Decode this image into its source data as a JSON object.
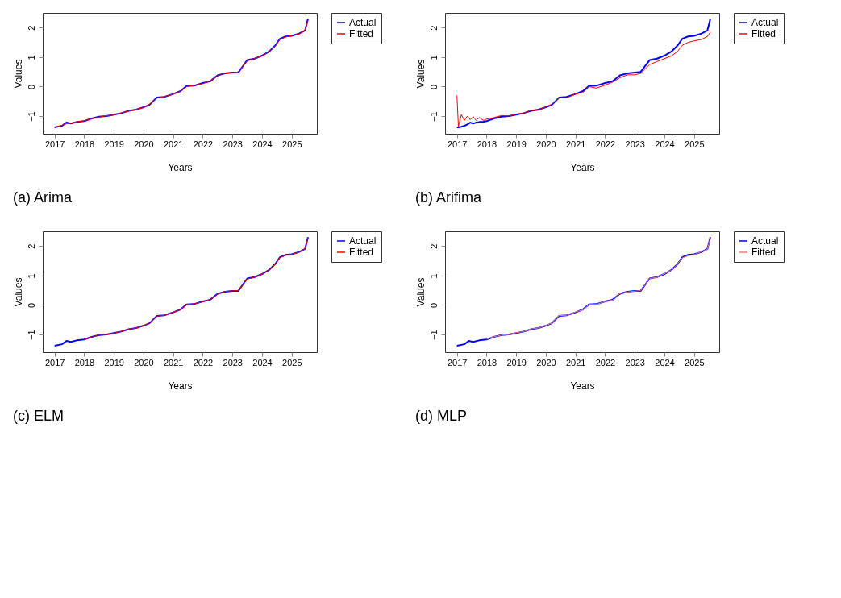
{
  "chart_data": [
    {
      "type": "line",
      "title": "(a) Arima",
      "xlabel": "Years",
      "ylabel": "Values",
      "xlim": [
        2016.6,
        2025.85
      ],
      "ylim": [
        -1.6,
        2.5
      ],
      "xticks": [
        2017,
        2018,
        2019,
        2020,
        2021,
        2022,
        2023,
        2024,
        2025
      ],
      "yticks": [
        -1,
        0,
        1,
        2
      ],
      "legend": "top right",
      "grid": false,
      "x": [
        2017.0,
        2017.25,
        2017.4,
        2017.55,
        2017.75,
        2018.0,
        2018.25,
        2018.5,
        2018.75,
        2019.0,
        2019.25,
        2019.5,
        2019.75,
        2020.0,
        2020.2,
        2020.45,
        2020.7,
        2021.0,
        2021.25,
        2021.45,
        2021.7,
        2022.0,
        2022.25,
        2022.5,
        2022.75,
        2023.0,
        2023.2,
        2023.5,
        2023.75,
        2024.0,
        2024.25,
        2024.45,
        2024.6,
        2024.8,
        2025.0,
        2025.25,
        2025.45,
        2025.55
      ],
      "series": [
        {
          "name": "Actual",
          "color": "#0000ff",
          "values": [
            -1.38,
            -1.33,
            -1.22,
            -1.25,
            -1.2,
            -1.17,
            -1.08,
            -1.02,
            -1.0,
            -0.95,
            -0.9,
            -0.82,
            -0.78,
            -0.7,
            -0.62,
            -0.37,
            -0.35,
            -0.25,
            -0.15,
            0.02,
            0.03,
            0.12,
            0.18,
            0.38,
            0.45,
            0.48,
            0.48,
            0.9,
            0.95,
            1.05,
            1.2,
            1.4,
            1.62,
            1.7,
            1.72,
            1.8,
            1.9,
            2.3
          ]
        },
        {
          "name": "Fitted",
          "color": "#ff0000",
          "values": [
            -1.38,
            -1.31,
            -1.26,
            -1.24,
            -1.19,
            -1.16,
            -1.09,
            -1.03,
            -0.99,
            -0.96,
            -0.89,
            -0.83,
            -0.77,
            -0.71,
            -0.6,
            -0.39,
            -0.34,
            -0.26,
            -0.14,
            0.0,
            0.04,
            0.1,
            0.2,
            0.36,
            0.46,
            0.47,
            0.5,
            0.87,
            0.96,
            1.04,
            1.22,
            1.38,
            1.6,
            1.68,
            1.73,
            1.78,
            1.92,
            2.25
          ]
        }
      ]
    },
    {
      "type": "line",
      "title": "(b) Arifima",
      "xlabel": "Years",
      "ylabel": "Values",
      "xlim": [
        2016.6,
        2025.85
      ],
      "ylim": [
        -1.6,
        2.5
      ],
      "xticks": [
        2017,
        2018,
        2019,
        2020,
        2021,
        2022,
        2023,
        2024,
        2025
      ],
      "yticks": [
        -1,
        0,
        1,
        2
      ],
      "legend": "top right",
      "grid": false,
      "x": [
        2017.0,
        2017.05,
        2017.15,
        2017.25,
        2017.35,
        2017.45,
        2017.55,
        2017.65,
        2017.75,
        2017.9,
        2018.0,
        2018.25,
        2018.5,
        2018.75,
        2019.0,
        2019.25,
        2019.5,
        2019.75,
        2020.0,
        2020.2,
        2020.45,
        2020.7,
        2021.0,
        2021.25,
        2021.45,
        2021.7,
        2022.0,
        2022.25,
        2022.5,
        2022.75,
        2023.0,
        2023.2,
        2023.5,
        2023.75,
        2024.0,
        2024.25,
        2024.45,
        2024.6,
        2024.8,
        2025.0,
        2025.25,
        2025.45,
        2025.55
      ],
      "series": [
        {
          "name": "Actual",
          "color": "#0000ff",
          "values": [
            -1.38,
            -1.38,
            -1.36,
            -1.33,
            -1.28,
            -1.22,
            -1.25,
            -1.22,
            -1.2,
            -1.19,
            -1.17,
            -1.08,
            -1.02,
            -1.0,
            -0.95,
            -0.9,
            -0.82,
            -0.78,
            -0.7,
            -0.62,
            -0.37,
            -0.35,
            -0.25,
            -0.15,
            0.02,
            0.03,
            0.12,
            0.18,
            0.38,
            0.45,
            0.48,
            0.5,
            0.9,
            0.95,
            1.05,
            1.2,
            1.4,
            1.62,
            1.7,
            1.72,
            1.8,
            1.9,
            2.3
          ]
        },
        {
          "name": "Fitted",
          "color": "#ff0000",
          "values": [
            -0.3,
            -1.35,
            -0.95,
            -1.15,
            -1.0,
            -1.12,
            -1.02,
            -1.15,
            -1.05,
            -1.15,
            -1.1,
            -1.05,
            -0.98,
            -1.0,
            -0.93,
            -0.9,
            -0.8,
            -0.8,
            -0.68,
            -0.6,
            -0.38,
            -0.38,
            -0.25,
            -0.2,
            0.0,
            -0.05,
            0.05,
            0.15,
            0.3,
            0.4,
            0.4,
            0.45,
            0.75,
            0.85,
            0.95,
            1.05,
            1.2,
            1.4,
            1.5,
            1.55,
            1.6,
            1.7,
            1.85
          ]
        }
      ]
    },
    {
      "type": "line",
      "title": "(c) ELM",
      "xlabel": "Years",
      "ylabel": "Values",
      "xlim": [
        2016.6,
        2025.85
      ],
      "ylim": [
        -1.6,
        2.5
      ],
      "xticks": [
        2017,
        2018,
        2019,
        2020,
        2021,
        2022,
        2023,
        2024,
        2025
      ],
      "yticks": [
        -1,
        0,
        1,
        2
      ],
      "legend": "top right",
      "grid": false,
      "x": [
        2017.0,
        2017.25,
        2017.4,
        2017.55,
        2017.75,
        2018.0,
        2018.25,
        2018.5,
        2018.75,
        2019.0,
        2019.25,
        2019.5,
        2019.75,
        2020.0,
        2020.2,
        2020.45,
        2020.7,
        2021.0,
        2021.25,
        2021.45,
        2021.7,
        2022.0,
        2022.25,
        2022.5,
        2022.75,
        2023.0,
        2023.2,
        2023.5,
        2023.75,
        2024.0,
        2024.25,
        2024.45,
        2024.6,
        2024.8,
        2025.0,
        2025.25,
        2025.45,
        2025.55
      ],
      "series": [
        {
          "name": "Actual",
          "color": "#0000ff",
          "values": [
            -1.38,
            -1.33,
            -1.22,
            -1.25,
            -1.2,
            -1.17,
            -1.08,
            -1.02,
            -1.0,
            -0.95,
            -0.9,
            -0.82,
            -0.78,
            -0.7,
            -0.62,
            -0.37,
            -0.35,
            -0.25,
            -0.15,
            0.02,
            0.03,
            0.12,
            0.18,
            0.38,
            0.45,
            0.48,
            0.48,
            0.9,
            0.95,
            1.05,
            1.2,
            1.4,
            1.62,
            1.7,
            1.72,
            1.8,
            1.9,
            2.3
          ]
        },
        {
          "name": "Fitted",
          "color": "#ff0000",
          "values": [
            null,
            null,
            null,
            null,
            null,
            -1.17,
            -1.09,
            -1.01,
            -1.0,
            -0.96,
            -0.89,
            -0.82,
            -0.78,
            -0.7,
            -0.61,
            -0.38,
            -0.35,
            -0.25,
            -0.15,
            0.01,
            0.04,
            0.11,
            0.19,
            0.37,
            0.46,
            0.48,
            0.49,
            0.88,
            0.95,
            1.05,
            1.21,
            1.39,
            1.61,
            1.69,
            1.72,
            1.79,
            1.91,
            2.28
          ]
        }
      ]
    },
    {
      "type": "line",
      "title": "(d) MLP",
      "xlabel": "Years",
      "ylabel": "Values",
      "xlim": [
        2016.6,
        2025.85
      ],
      "ylim": [
        -1.6,
        2.5
      ],
      "xticks": [
        2017,
        2018,
        2019,
        2020,
        2021,
        2022,
        2023,
        2024,
        2025
      ],
      "yticks": [
        -1,
        0,
        1,
        2
      ],
      "legend": "top right",
      "grid": false,
      "x": [
        2017.0,
        2017.25,
        2017.4,
        2017.55,
        2017.75,
        2018.0,
        2018.25,
        2018.5,
        2018.75,
        2019.0,
        2019.25,
        2019.5,
        2019.75,
        2020.0,
        2020.2,
        2020.45,
        2020.7,
        2021.0,
        2021.25,
        2021.45,
        2021.7,
        2022.0,
        2022.25,
        2022.5,
        2022.75,
        2023.0,
        2023.2,
        2023.5,
        2023.75,
        2024.0,
        2024.25,
        2024.45,
        2024.6,
        2024.8,
        2025.0,
        2025.25,
        2025.45,
        2025.55
      ],
      "series": [
        {
          "name": "Actual",
          "color": "#0000ff",
          "values": [
            -1.38,
            -1.33,
            -1.22,
            -1.25,
            -1.2,
            -1.17,
            -1.08,
            -1.02,
            -1.0,
            -0.95,
            -0.9,
            -0.82,
            -0.78,
            -0.7,
            -0.62,
            -0.37,
            -0.35,
            -0.25,
            -0.15,
            0.02,
            0.03,
            0.12,
            0.18,
            0.38,
            0.45,
            0.48,
            0.48,
            0.9,
            0.95,
            1.05,
            1.2,
            1.4,
            1.62,
            1.7,
            1.72,
            1.8,
            1.9,
            2.3
          ]
        },
        {
          "name": "Fitted",
          "color": "#f08070",
          "values": [
            null,
            null,
            null,
            null,
            null,
            -1.16,
            -1.08,
            -1.02,
            -1.0,
            -0.94,
            -0.9,
            -0.81,
            -0.78,
            -0.69,
            -0.62,
            -0.36,
            -0.35,
            -0.24,
            -0.16,
            0.02,
            0.02,
            0.12,
            0.17,
            0.39,
            0.44,
            0.47,
            0.49,
            0.9,
            0.94,
            1.06,
            1.19,
            1.41,
            1.6,
            1.67,
            1.71,
            1.81,
            1.89,
            2.27
          ]
        }
      ]
    }
  ]
}
